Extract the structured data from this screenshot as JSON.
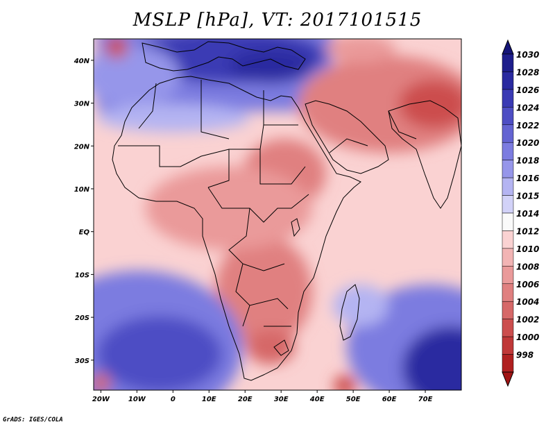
{
  "title": "MSLP [hPa], VT: 2017101515",
  "credit": "GrADS: IGES/COLA",
  "map": {
    "lon_range": [
      -22,
      80
    ],
    "lat_range": [
      -37,
      45
    ],
    "lon_ticks": [
      {
        "value": -20,
        "label": "20W"
      },
      {
        "value": -10,
        "label": "10W"
      },
      {
        "value": 0,
        "label": "0"
      },
      {
        "value": 10,
        "label": "10E"
      },
      {
        "value": 20,
        "label": "20E"
      },
      {
        "value": 30,
        "label": "30E"
      },
      {
        "value": 40,
        "label": "40E"
      },
      {
        "value": 50,
        "label": "50E"
      },
      {
        "value": 60,
        "label": "60E"
      },
      {
        "value": 70,
        "label": "70E"
      }
    ],
    "lat_ticks": [
      {
        "value": 40,
        "label": "40N"
      },
      {
        "value": 30,
        "label": "30N"
      },
      {
        "value": 20,
        "label": "20N"
      },
      {
        "value": 10,
        "label": "10N"
      },
      {
        "value": 0,
        "label": "EQ"
      },
      {
        "value": -10,
        "label": "10S"
      },
      {
        "value": -20,
        "label": "20S"
      },
      {
        "value": -30,
        "label": "30S"
      }
    ]
  },
  "colorbar": {
    "levels": [
      {
        "label": "1030",
        "color": "#1e1e8c"
      },
      {
        "label": "1028",
        "color": "#2a2aa0"
      },
      {
        "label": "1026",
        "color": "#3a3ab4"
      },
      {
        "label": "1024",
        "color": "#4e4ec4"
      },
      {
        "label": "1022",
        "color": "#6464d2"
      },
      {
        "label": "1020",
        "color": "#7c7ce0"
      },
      {
        "label": "1018",
        "color": "#9696ea"
      },
      {
        "label": "1016",
        "color": "#b4b4f2"
      },
      {
        "label": "1015",
        "color": "#d2d2f8"
      },
      {
        "label": "1014",
        "color": "#fafafa"
      },
      {
        "label": "1012",
        "color": "#fad2d2"
      },
      {
        "label": "1010",
        "color": "#f2b4b4"
      },
      {
        "label": "1008",
        "color": "#ea9a9a"
      },
      {
        "label": "1006",
        "color": "#e08080"
      },
      {
        "label": "1004",
        "color": "#d66868"
      },
      {
        "label": "1002",
        "color": "#cc4e4e"
      },
      {
        "label": "1000",
        "color": "#c03838"
      },
      {
        "label": "998",
        "color": "#b02020"
      }
    ],
    "top_cap_color": "#141478",
    "bottom_cap_color": "#a01414"
  }
}
